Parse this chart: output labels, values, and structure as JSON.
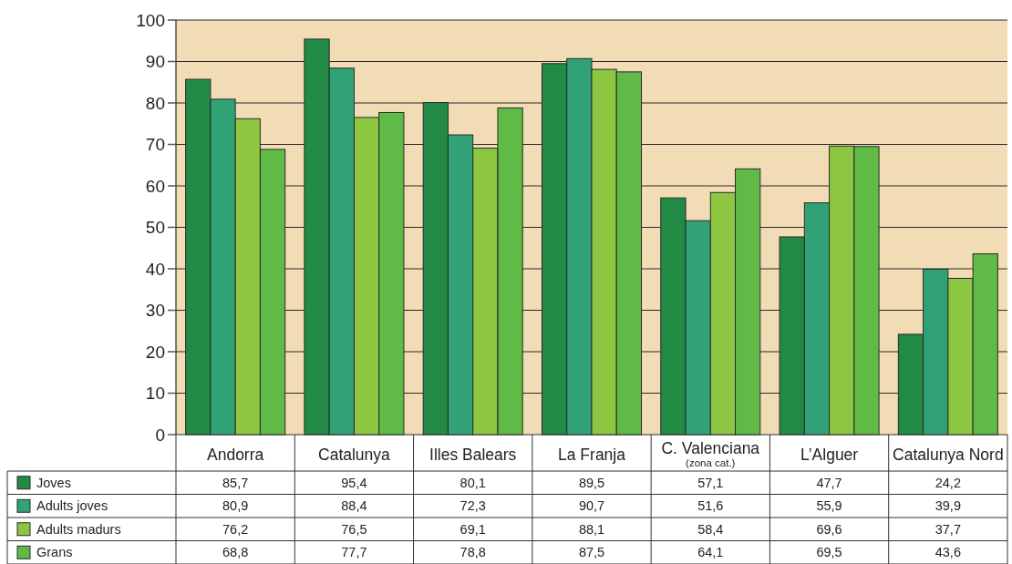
{
  "chart_data": {
    "type": "bar",
    "categories": [
      "Andorra",
      "Catalunya",
      "Illes Balears",
      "La Franja",
      "C. Valenciana\n(zona cat.)",
      "L’Alguer",
      "Catalunya Nord"
    ],
    "series": [
      {
        "name": "Joves",
        "color": "#218a45",
        "values": [
          85.7,
          95.4,
          80.1,
          89.5,
          57.1,
          47.7,
          24.2
        ],
        "value_labels": [
          "85,7",
          "95,4",
          "80,1",
          "89,5",
          "57,1",
          "47,7",
          "24,2"
        ]
      },
      {
        "name": "Adults joves",
        "color": "#30a276",
        "values": [
          80.9,
          88.4,
          72.3,
          90.7,
          51.6,
          55.9,
          39.9
        ],
        "value_labels": [
          "80,9",
          "88,4",
          "72,3",
          "90,7",
          "51,6",
          "55,9",
          "39,9"
        ]
      },
      {
        "name": "Adults madurs",
        "color": "#8dc641",
        "values": [
          76.2,
          76.5,
          69.1,
          88.1,
          58.4,
          69.6,
          37.7
        ],
        "value_labels": [
          "76,2",
          "76,5",
          "69,1",
          "88,1",
          "58,4",
          "69,6",
          "37,7"
        ]
      },
      {
        "name": "Grans",
        "color": "#5fba46",
        "values": [
          68.8,
          77.7,
          78.8,
          87.5,
          64.1,
          69.5,
          43.6
        ],
        "value_labels": [
          "68,8",
          "77,7",
          "78,8",
          "87,5",
          "64,1",
          "69,5",
          "43,6"
        ]
      }
    ],
    "ylim": [
      0,
      100
    ],
    "yticks": [
      0,
      10,
      20,
      30,
      40,
      50,
      60,
      70,
      80,
      90,
      100
    ],
    "grid": "y",
    "legend": "bottom left"
  }
}
